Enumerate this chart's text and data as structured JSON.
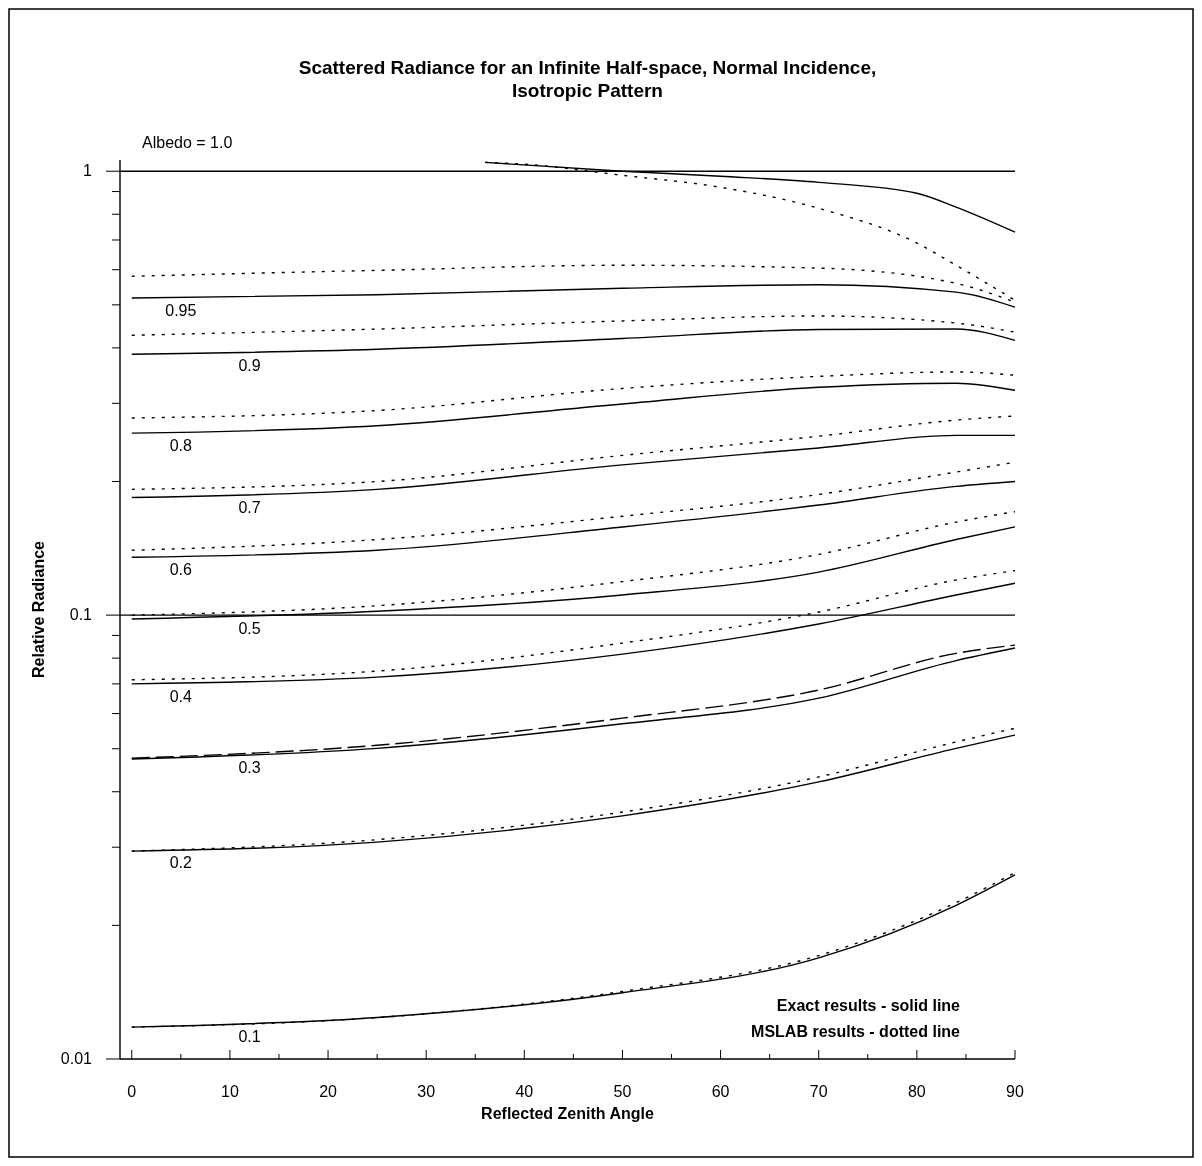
{
  "chart_data": {
    "type": "line",
    "title": "Scattered Radiance for an Infinite Half-space, Normal Incidence, Isotropic Pattern",
    "xlabel": "Reflected Zenith Angle",
    "ylabel": "Relative Radiance",
    "log": "y",
    "legend": false,
    "xlim": [
      -1.2,
      90
    ],
    "ylim": [
      0.01,
      1.06
    ],
    "xticks": [
      0,
      {
        "value": 5,
        "label": null
      },
      10,
      {
        "value": 15,
        "label": null
      },
      20,
      {
        "value": 25,
        "label": null
      },
      30,
      {
        "value": 35,
        "label": null
      },
      40,
      {
        "value": 45,
        "label": null
      },
      50,
      {
        "value": 55,
        "label": null
      },
      60,
      {
        "value": 65,
        "label": null
      },
      70,
      {
        "value": 75,
        "label": null
      },
      80,
      {
        "value": 85,
        "label": null
      },
      90
    ],
    "yticks": [
      0.01,
      {
        "value": 0.02,
        "label": null
      },
      {
        "value": 0.03,
        "label": null
      },
      {
        "value": 0.04,
        "label": null
      },
      {
        "value": 0.05,
        "label": null
      },
      {
        "value": 0.06,
        "label": null
      },
      {
        "value": 0.07,
        "label": null
      },
      {
        "value": 0.08,
        "label": null
      },
      {
        "value": 0.09,
        "label": null
      },
      0.1,
      {
        "value": 0.2,
        "label": null
      },
      {
        "value": 0.3,
        "label": null
      },
      {
        "value": 0.4,
        "label": null
      },
      {
        "value": 0.5,
        "label": null
      },
      {
        "value": 0.6,
        "label": null
      },
      {
        "value": 0.7,
        "label": null
      },
      {
        "value": 0.8,
        "label": null
      },
      {
        "value": 0.9,
        "label": null
      },
      1
    ],
    "ref_lines": [
      {
        "axis": "y",
        "value": 1,
        "color": "#000000"
      },
      {
        "axis": "y",
        "value": 0.1,
        "color": "#000000"
      }
    ],
    "x": [
      0,
      25,
      50,
      70,
      84,
      90
    ],
    "series": [
      {
        "color": "#000000",
        "line_style": "solid",
        "x": [
          36,
          50,
          60,
          70,
          80,
          84,
          90
        ],
        "values": [
          1.047,
          1,
          0.974,
          0.944,
          0.892,
          0.83,
          0.729
        ]
      },
      {
        "color": "#000000",
        "line_style": "dotted",
        "x": [
          36,
          40,
          50,
          60,
          70,
          80,
          84,
          90
        ],
        "values": [
          1.047,
          1.037,
          0.979,
          0.92,
          0.825,
          0.689,
          0.614,
          0.512
        ]
      },
      {
        "name": "0.95",
        "color": "#000000",
        "line_style": "solid",
        "values": [
          0.518,
          0.527,
          0.545,
          0.555,
          0.534,
          0.494
        ]
      },
      {
        "color": "#000000",
        "line_style": "dotted",
        "values": [
          0.58,
          0.598,
          0.614,
          0.605,
          0.559,
          0.507
        ]
      },
      {
        "name": "0.9",
        "color": "#000000",
        "line_style": "solid",
        "values": [
          0.387,
          0.397,
          0.42,
          0.44,
          0.441,
          0.416
        ]
      },
      {
        "color": "#000000",
        "line_style": "dotted",
        "values": [
          0.427,
          0.441,
          0.46,
          0.472,
          0.455,
          0.434
        ]
      },
      {
        "name": "0.8",
        "color": "#000000",
        "line_style": "solid",
        "values": [
          0.257,
          0.267,
          0.299,
          0.326,
          0.333,
          0.321
        ]
      },
      {
        "color": "#000000",
        "line_style": "dotted",
        "values": [
          0.278,
          0.289,
          0.324,
          0.345,
          0.353,
          0.347
        ]
      },
      {
        "name": "0.7",
        "color": "#000000",
        "line_style": "solid",
        "values": [
          0.184,
          0.192,
          0.218,
          0.238,
          0.254,
          0.254
        ]
      },
      {
        "color": "#000000",
        "line_style": "dotted",
        "values": [
          0.192,
          0.2,
          0.229,
          0.253,
          0.275,
          0.281
        ]
      },
      {
        "name": "0.6",
        "color": "#000000",
        "line_style": "solid",
        "values": [
          0.135,
          0.14,
          0.158,
          0.177,
          0.195,
          0.2
        ]
      },
      {
        "color": "#000000",
        "line_style": "dotted",
        "values": [
          0.14,
          0.148,
          0.167,
          0.187,
          0.21,
          0.221
        ]
      },
      {
        "name": "0.5",
        "color": "#000000",
        "line_style": "solid",
        "values": [
          0.098,
          0.102,
          0.111,
          0.125,
          0.148,
          0.158
        ]
      },
      {
        "color": "#000000",
        "line_style": "dotted",
        "values": [
          0.1,
          0.105,
          0.119,
          0.137,
          0.162,
          0.171
        ]
      },
      {
        "name": "0.4",
        "color": "#000000",
        "line_style": "solid",
        "values": [
          0.07,
          0.0725,
          0.0817,
          0.0955,
          0.111,
          0.118
        ]
      },
      {
        "color": "#000000",
        "line_style": "dotted",
        "values": [
          0.0715,
          0.0748,
          0.0865,
          0.1016,
          0.12,
          0.126
        ]
      },
      {
        "name": "0.3",
        "color": "#000000",
        "line_style": "solid",
        "values": [
          0.0474,
          0.0501,
          0.0569,
          0.065,
          0.079,
          0.0843
        ]
      },
      {
        "color": "#000000",
        "line_style": "dashed",
        "values": [
          0.0476,
          0.0509,
          0.0586,
          0.0678,
          0.082,
          0.0856
        ]
      },
      {
        "name": "0.2",
        "color": "#000000",
        "line_style": "solid",
        "values": [
          0.0294,
          0.0308,
          0.0353,
          0.0421,
          0.0501,
          0.0537
        ]
      },
      {
        "color": "#000000",
        "line_style": "dotted",
        "values": [
          0.0294,
          0.0312,
          0.036,
          0.0432,
          0.0518,
          0.0556
        ]
      },
      {
        "name": "0.1",
        "color": "#000000",
        "line_style": "solid",
        "values": [
          0.0118,
          0.0124,
          0.0141,
          0.0169,
          0.0222,
          0.026
        ]
      },
      {
        "color": "#000000",
        "line_style": "dotted",
        "values": [
          0.0118,
          0.0124,
          0.0142,
          0.0171,
          0.0225,
          0.0263
        ]
      }
    ],
    "annotations": [
      "Albedo = 1.0",
      "Exact results - solid line",
      "MSLAB results - dotted line"
    ]
  }
}
